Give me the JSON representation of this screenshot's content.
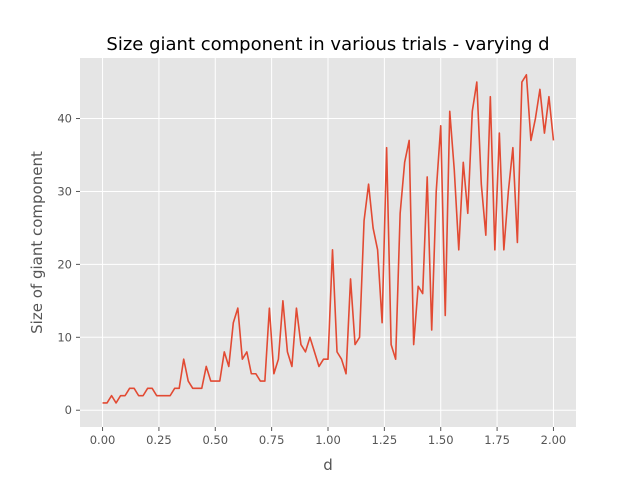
{
  "chart_data": {
    "type": "line",
    "title": "Size giant component in various trials - varying d",
    "xlabel": "d",
    "ylabel": "Size of giant component",
    "xlim": [
      -0.1,
      2.1
    ],
    "ylim": [
      -2.3,
      48.3
    ],
    "xticks": [
      0.0,
      0.25,
      0.5,
      0.75,
      1.0,
      1.25,
      1.5,
      1.75,
      2.0
    ],
    "xtick_labels": [
      "0.00",
      "0.25",
      "0.50",
      "0.75",
      "1.00",
      "1.25",
      "1.50",
      "1.75",
      "2.00"
    ],
    "yticks": [
      0,
      10,
      20,
      30,
      40
    ],
    "ytick_labels": [
      "0",
      "10",
      "20",
      "30",
      "40"
    ],
    "grid": true,
    "style": "ggplot",
    "line_color": "#E24A33",
    "series": [
      {
        "x": [
          0.0,
          0.02,
          0.04,
          0.06,
          0.08,
          0.1,
          0.12,
          0.14,
          0.16,
          0.18,
          0.2,
          0.22,
          0.24,
          0.26,
          0.28,
          0.3,
          0.32,
          0.34,
          0.36,
          0.38,
          0.4,
          0.42,
          0.44,
          0.46,
          0.48,
          0.5,
          0.52,
          0.54,
          0.56,
          0.58,
          0.6,
          0.62,
          0.64,
          0.66,
          0.68,
          0.7,
          0.72,
          0.74,
          0.76,
          0.78,
          0.8,
          0.82,
          0.84,
          0.86,
          0.88,
          0.9,
          0.92,
          0.94,
          0.96,
          0.98,
          1.0,
          1.02,
          1.04,
          1.06,
          1.08,
          1.1,
          1.12,
          1.14,
          1.16,
          1.18,
          1.2,
          1.22,
          1.24,
          1.26,
          1.28,
          1.3,
          1.32,
          1.34,
          1.36,
          1.38,
          1.4,
          1.42,
          1.44,
          1.46,
          1.48,
          1.5,
          1.52,
          1.54,
          1.56,
          1.58,
          1.6,
          1.62,
          1.64,
          1.66,
          1.68,
          1.7,
          1.72,
          1.74,
          1.76,
          1.78,
          1.8,
          1.82,
          1.84,
          1.86,
          1.88,
          1.9,
          1.92,
          1.94,
          1.96,
          1.98,
          2.0
        ],
        "y": [
          1,
          1,
          2,
          1,
          2,
          2,
          3,
          3,
          2,
          2,
          3,
          3,
          2,
          2,
          2,
          2,
          3,
          3,
          7,
          4,
          3,
          3,
          3,
          6,
          4,
          4,
          4,
          8,
          6,
          12,
          14,
          7,
          8,
          5,
          5,
          4,
          4,
          14,
          5,
          7,
          15,
          8,
          6,
          14,
          9,
          8,
          10,
          8,
          6,
          7,
          7,
          22,
          8,
          7,
          5,
          18,
          9,
          10,
          26,
          31,
          25,
          22,
          12,
          36,
          9,
          7,
          27,
          34,
          37,
          9,
          17,
          16,
          32,
          11,
          30,
          39,
          13,
          41,
          33,
          22,
          34,
          27,
          41,
          45,
          31,
          24,
          43,
          22,
          38,
          22,
          30,
          36,
          23,
          45,
          46,
          37,
          40,
          44,
          38,
          43,
          37
        ]
      }
    ]
  }
}
